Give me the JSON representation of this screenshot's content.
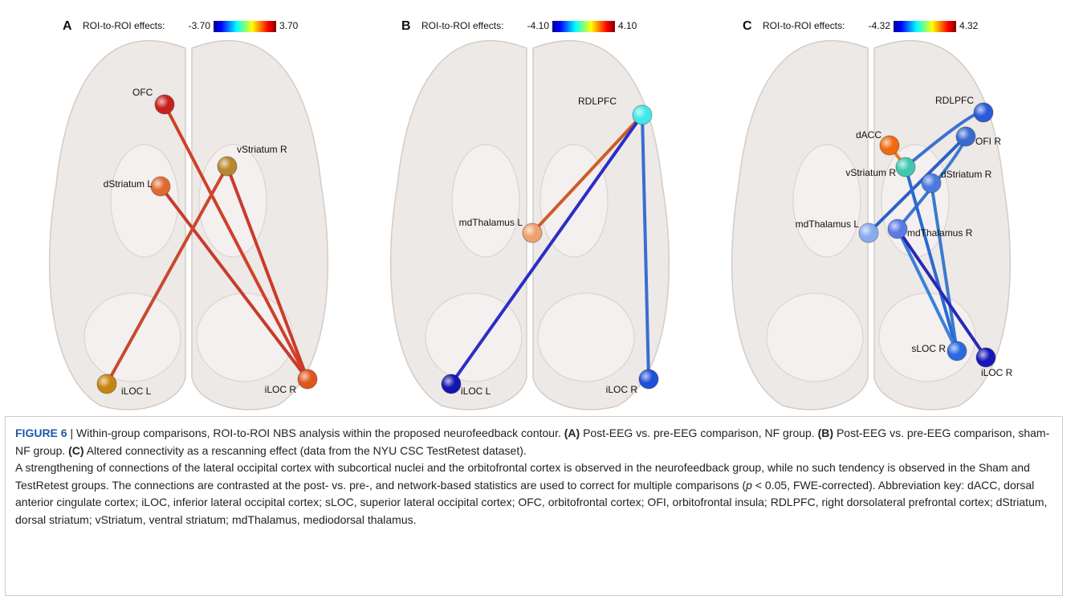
{
  "panels": [
    {
      "label": "A",
      "colorbar": {
        "title": "ROI-to-ROI effects:",
        "min": "-3.70",
        "max": "3.70"
      },
      "nodes": [
        "OFC",
        "vStriatum R",
        "dStriatum L",
        "iLOC L",
        "iLOC R"
      ]
    },
    {
      "label": "B",
      "colorbar": {
        "title": "ROI-to-ROI effects:",
        "min": "-4.10",
        "max": "4.10"
      },
      "nodes": [
        "RDLPFC",
        "mdThalamus L",
        "iLOC L",
        "iLOC R"
      ]
    },
    {
      "label": "C",
      "colorbar": {
        "title": "ROI-to-ROI effects:",
        "min": "-4.32",
        "max": "4.32"
      },
      "nodes": [
        "RDLPFC",
        "dACC",
        "OFI R",
        "vStriatum R",
        "dStriatum R",
        "mdThalamus L",
        "mdThalamus R",
        "sLOC R",
        "iLOC R"
      ]
    }
  ],
  "caption": {
    "figure": "FIGURE 6",
    "separator": "|",
    "segments": [
      "Within-group comparisons, ROI-to-ROI NBS analysis within the proposed neurofeedback contour.",
      "(A)",
      "Post-EEG vs. pre-EEG comparison, NF group.",
      "(B)",
      "Post-EEG vs. pre-EEG comparison, sham-NF group.",
      "(C)",
      "Altered connectivity as a rescanning effect (data from the NYU CSC TestRetest dataset).",
      "A strengthening of connections of the lateral occipital cortex with subcortical nuclei and the orbitofrontal cortex is observed in the neurofeedback group, while no such tendency is observed in the Sham and TestRetest groups. The connections are contrasted at the post- vs. pre-, and network-based statistics are used to correct for multiple comparisons (",
      "p",
      "< 0.05, FWE-corrected). Abbreviation key: dACC, dorsal anterior cingulate cortex; iLOC, inferior lateral occipital cortex; sLOC, superior lateral occipital cortex; OFC, orbitofrontal cortex; OFI, orbitofrontal insula; RDLPFC, right dorsolateral prefrontal cortex; dStriatum, dorsal striatum; vStriatum, ventral striatum; mdThalamus, mediodorsal thalamus."
    ]
  }
}
